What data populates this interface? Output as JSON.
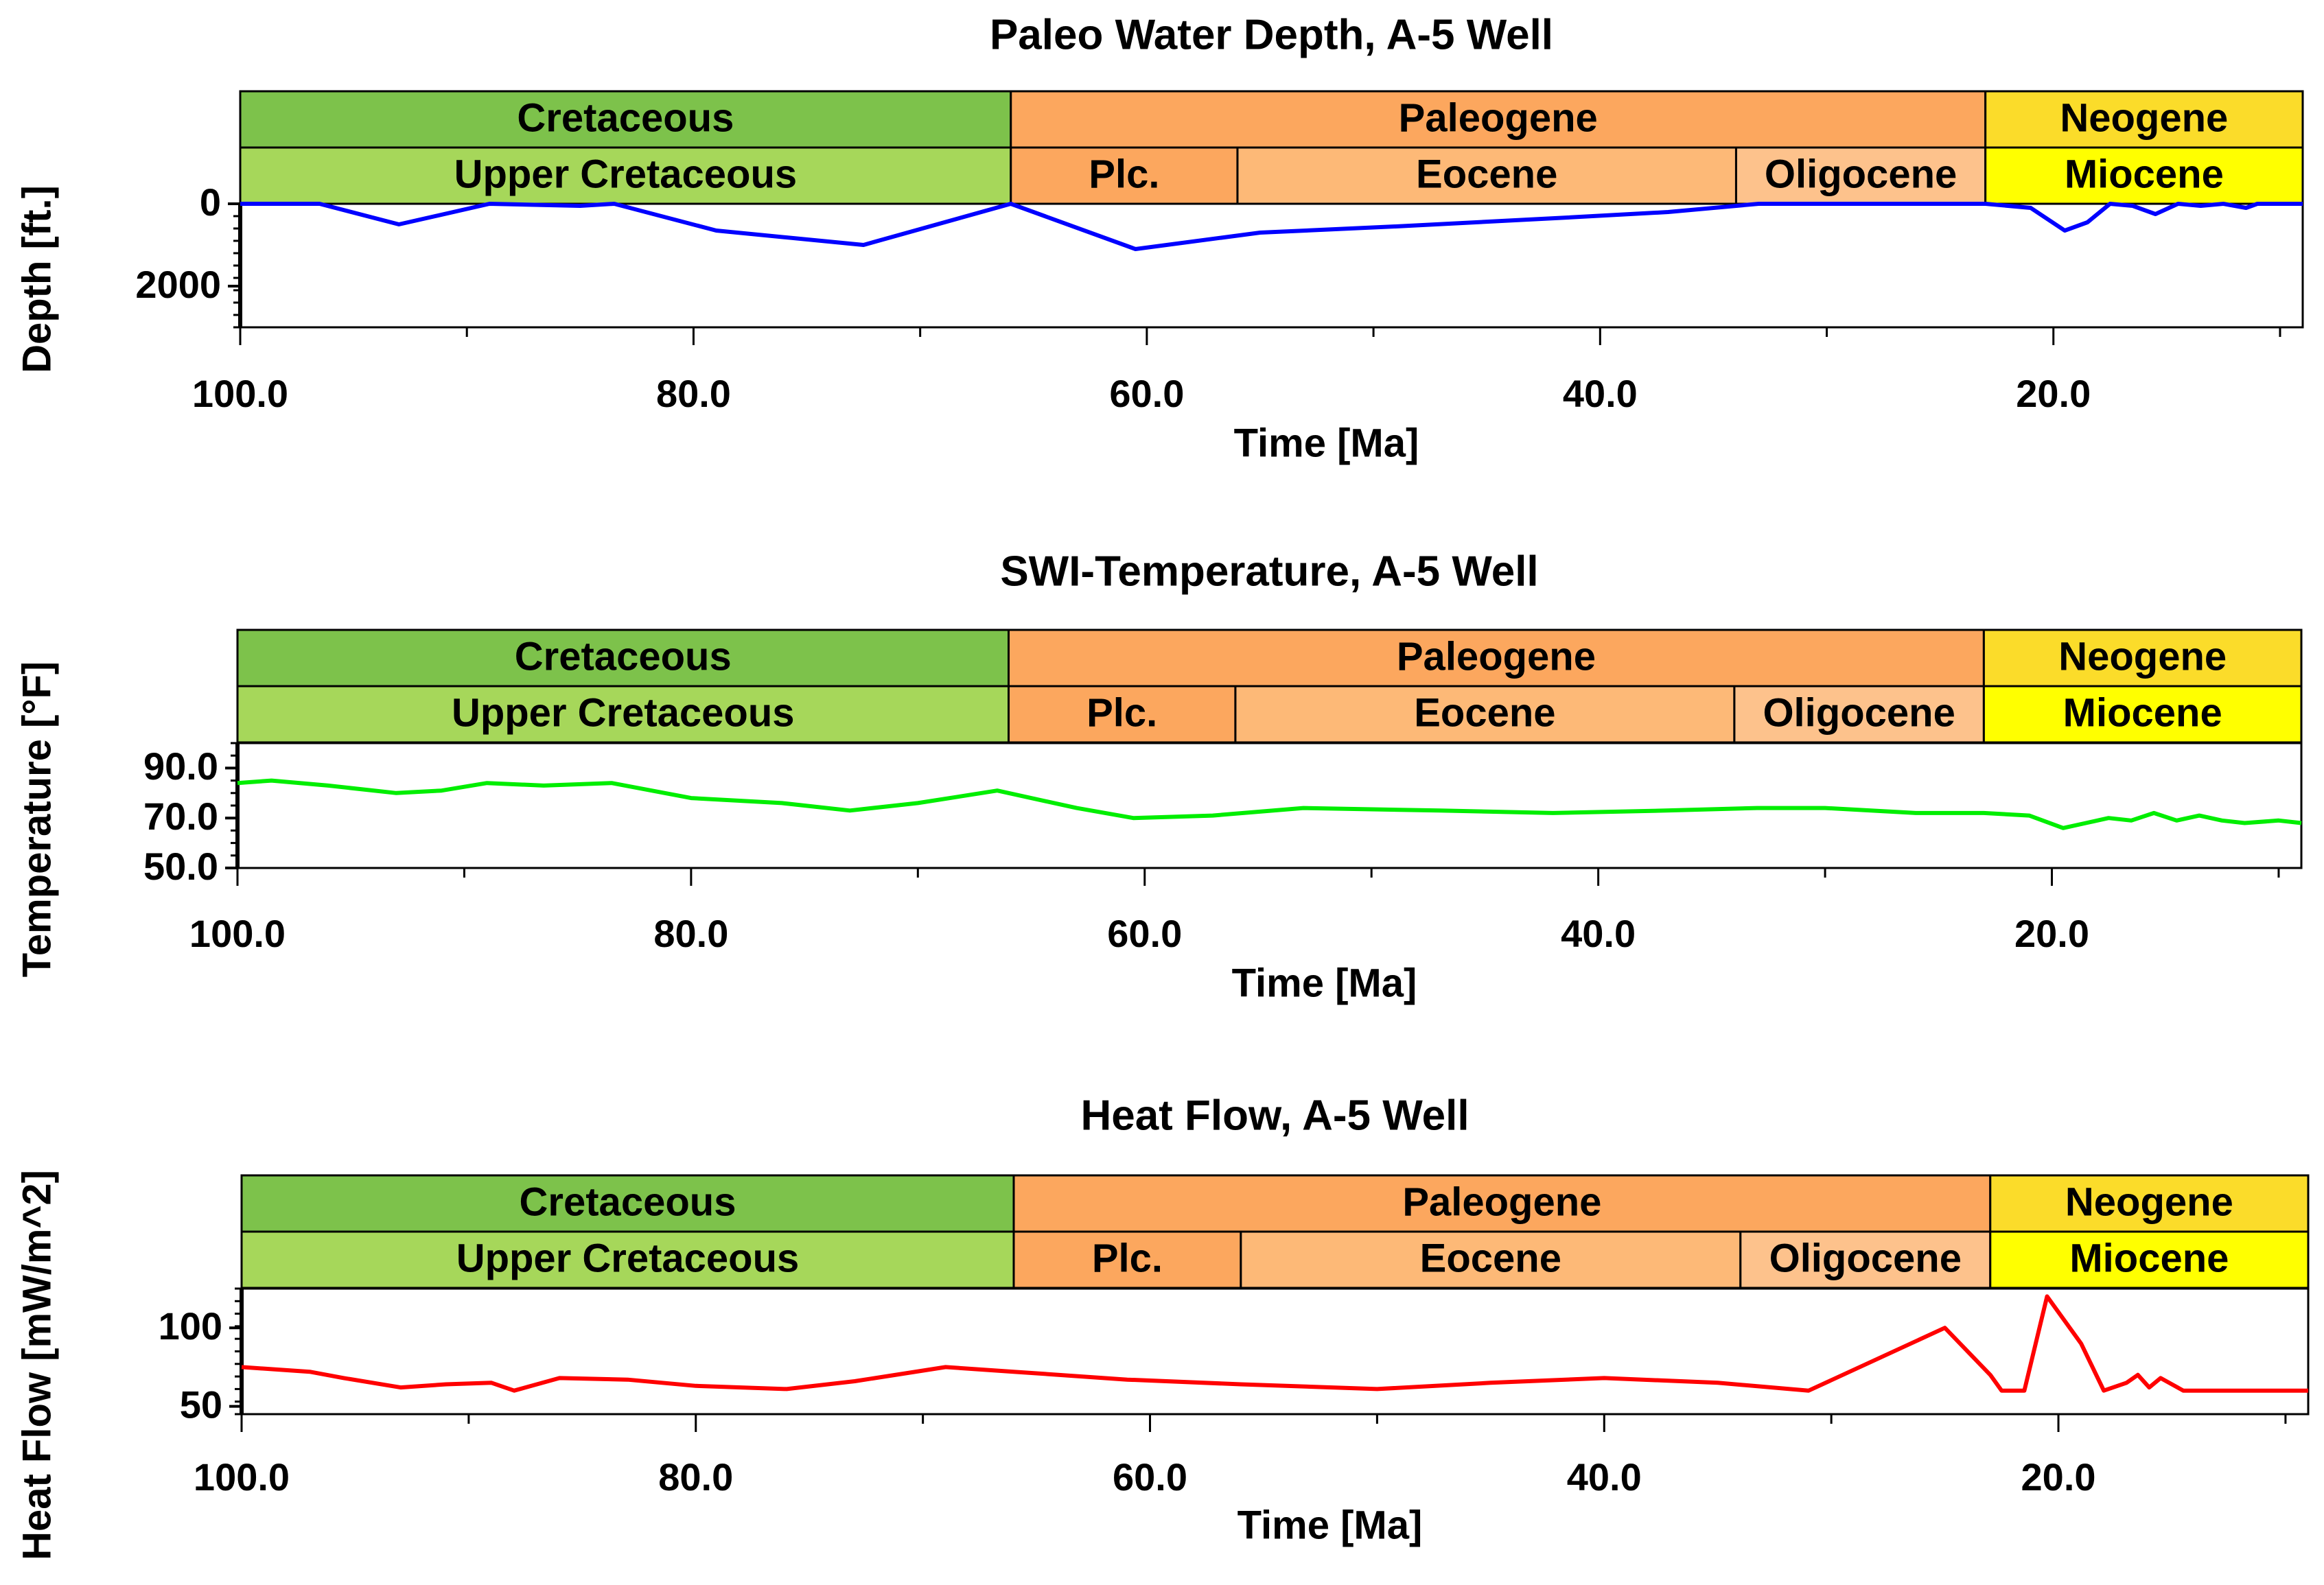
{
  "chart_data": [
    {
      "type": "line",
      "title": "Paleo Water Depth, A-5 Well",
      "xlabel": "Time [Ma]",
      "ylabel": "Depth [ft.]",
      "xlim": [
        100,
        9
      ],
      "ylim": [
        0,
        3000
      ],
      "y_inverted": true,
      "xticks": [
        100,
        80,
        60,
        40,
        20
      ],
      "xtick_labels": [
        "100.0",
        "80.0",
        "60.0",
        "40.0",
        "20.0"
      ],
      "yticks": [
        0,
        2000
      ],
      "ytick_labels": [
        "0",
        "2000"
      ],
      "color": "#0000ff",
      "series": [
        {
          "name": "Paleo Water Depth",
          "x": [
            100,
            96.5,
            93,
            89,
            85,
            83.5,
            79,
            72.5,
            66,
            60.5,
            55,
            49,
            42,
            37,
            33,
            23,
            21,
            19.5,
            18.5,
            17.5,
            16.5,
            15.5,
            14.5,
            13.5,
            12.5,
            11.5,
            11,
            10,
            9
          ],
          "y": [
            0,
            0,
            500,
            0,
            50,
            0,
            650,
            1000,
            0,
            1100,
            700,
            550,
            350,
            200,
            0,
            0,
            100,
            650,
            450,
            0,
            50,
            250,
            0,
            50,
            0,
            100,
            0,
            0,
            0
          ]
        }
      ],
      "bands": {
        "periods": [
          {
            "label": "Cretaceous",
            "start": 100,
            "end": 66,
            "color": "#7dc24b"
          },
          {
            "label": "Paleogene",
            "start": 66,
            "end": 23,
            "color": "#fca75e"
          },
          {
            "label": "Neogene",
            "start": 23,
            "end": 9,
            "color": "#fbdc2a"
          }
        ],
        "epochs": [
          {
            "label": "Upper Cretaceous",
            "start": 100,
            "end": 66,
            "color": "#a6d75a"
          },
          {
            "label": "Plc.",
            "start": 66,
            "end": 56,
            "color": "#fca75e"
          },
          {
            "label": "Eocene",
            "start": 56,
            "end": 34,
            "color": "#fdb977"
          },
          {
            "label": "Oligocene",
            "start": 34,
            "end": 23,
            "color": "#fdc28c"
          },
          {
            "label": "Miocene",
            "start": 23,
            "end": 9,
            "color": "#ffff00"
          }
        ]
      }
    },
    {
      "type": "line",
      "title": "SWI-Temperature, A-5 Well",
      "xlabel": "Time [Ma]",
      "ylabel": "Temperature [°F]",
      "xlim": [
        100,
        9
      ],
      "ylim": [
        50,
        100
      ],
      "y_inverted": false,
      "xticks": [
        100,
        80,
        60,
        40,
        20
      ],
      "xtick_labels": [
        "100.0",
        "80.0",
        "60.0",
        "40.0",
        "20.0"
      ],
      "yticks": [
        90,
        70,
        50
      ],
      "ytick_labels": [
        "90.0",
        "70.0",
        "50.0"
      ],
      "color": "#00ee00",
      "series": [
        {
          "name": "SWI-Temperature",
          "x": [
            100,
            98.5,
            96,
            93,
            91,
            89,
            86.5,
            83.5,
            80,
            76,
            73,
            70,
            66.5,
            63,
            60.5,
            57,
            53,
            47,
            42,
            37,
            33,
            30,
            26,
            23,
            21,
            19.5,
            18.5,
            17.5,
            16.5,
            15.5,
            14.5,
            13.5,
            12.5,
            11.5,
            10,
            9
          ],
          "y": [
            84,
            85,
            83,
            80,
            81,
            84,
            83,
            84,
            78,
            76,
            73,
            76,
            81,
            74,
            70,
            71,
            74,
            73,
            72,
            73,
            74,
            74,
            72,
            72,
            71,
            66,
            68,
            70,
            69,
            72,
            69,
            71,
            69,
            68,
            69,
            68
          ]
        }
      ],
      "bands": {
        "periods": [
          {
            "label": "Cretaceous",
            "start": 100,
            "end": 66,
            "color": "#7dc24b"
          },
          {
            "label": "Paleogene",
            "start": 66,
            "end": 23,
            "color": "#fca75e"
          },
          {
            "label": "Neogene",
            "start": 23,
            "end": 9,
            "color": "#fbdc2a"
          }
        ],
        "epochs": [
          {
            "label": "Upper Cretaceous",
            "start": 100,
            "end": 66,
            "color": "#a6d75a"
          },
          {
            "label": "Plc.",
            "start": 66,
            "end": 56,
            "color": "#fca75e"
          },
          {
            "label": "Eocene",
            "start": 56,
            "end": 34,
            "color": "#fdb977"
          },
          {
            "label": "Oligocene",
            "start": 34,
            "end": 23,
            "color": "#fdc28c"
          },
          {
            "label": "Miocene",
            "start": 23,
            "end": 9,
            "color": "#ffff00"
          }
        ]
      }
    },
    {
      "type": "line",
      "title": "Heat Flow, A-5 Well",
      "xlabel": "Time [Ma]",
      "ylabel": "Heat Flow [mW/m^2]",
      "xlim": [
        100,
        9
      ],
      "ylim": [
        45,
        125
      ],
      "y_inverted": false,
      "xticks": [
        100,
        80,
        60,
        40,
        20
      ],
      "xtick_labels": [
        "100.0",
        "80.0",
        "60.0",
        "40.0",
        "20.0"
      ],
      "yticks": [
        100,
        50
      ],
      "ytick_labels": [
        "100",
        "50"
      ],
      "color": "#ff0000",
      "series": [
        {
          "name": "Heat Flow",
          "x": [
            100,
            97,
            95.5,
            93,
            91,
            89,
            88,
            86,
            83,
            80,
            76,
            73,
            69,
            66,
            61,
            56,
            50,
            45,
            40,
            35,
            31,
            25,
            23,
            22.5,
            21.5,
            20.5,
            19.5,
            19,
            18,
            17,
            16.5,
            16,
            15.5,
            14.5,
            12,
            9
          ],
          "y": [
            75,
            72,
            68,
            62,
            64,
            65,
            60,
            68,
            67,
            63,
            61,
            66,
            75,
            72,
            67,
            64,
            61,
            65,
            68,
            65,
            60,
            100,
            70,
            60,
            60,
            120,
            100,
            90,
            60,
            65,
            70,
            62,
            68,
            60,
            60,
            60
          ]
        }
      ],
      "bands": {
        "periods": [
          {
            "label": "Cretaceous",
            "start": 100,
            "end": 66,
            "color": "#7dc24b"
          },
          {
            "label": "Paleogene",
            "start": 66,
            "end": 23,
            "color": "#fca75e"
          },
          {
            "label": "Neogene",
            "start": 23,
            "end": 9,
            "color": "#fbdc2a"
          }
        ],
        "epochs": [
          {
            "label": "Upper Cretaceous",
            "start": 100,
            "end": 66,
            "color": "#a6d75a"
          },
          {
            "label": "Plc.",
            "start": 66,
            "end": 56,
            "color": "#fca75e"
          },
          {
            "label": "Eocene",
            "start": 56,
            "end": 34,
            "color": "#fdb977"
          },
          {
            "label": "Oligocene",
            "start": 34,
            "end": 23,
            "color": "#fdc28c"
          },
          {
            "label": "Miocene",
            "start": 23,
            "end": 9,
            "color": "#ffff00"
          }
        ]
      }
    }
  ]
}
